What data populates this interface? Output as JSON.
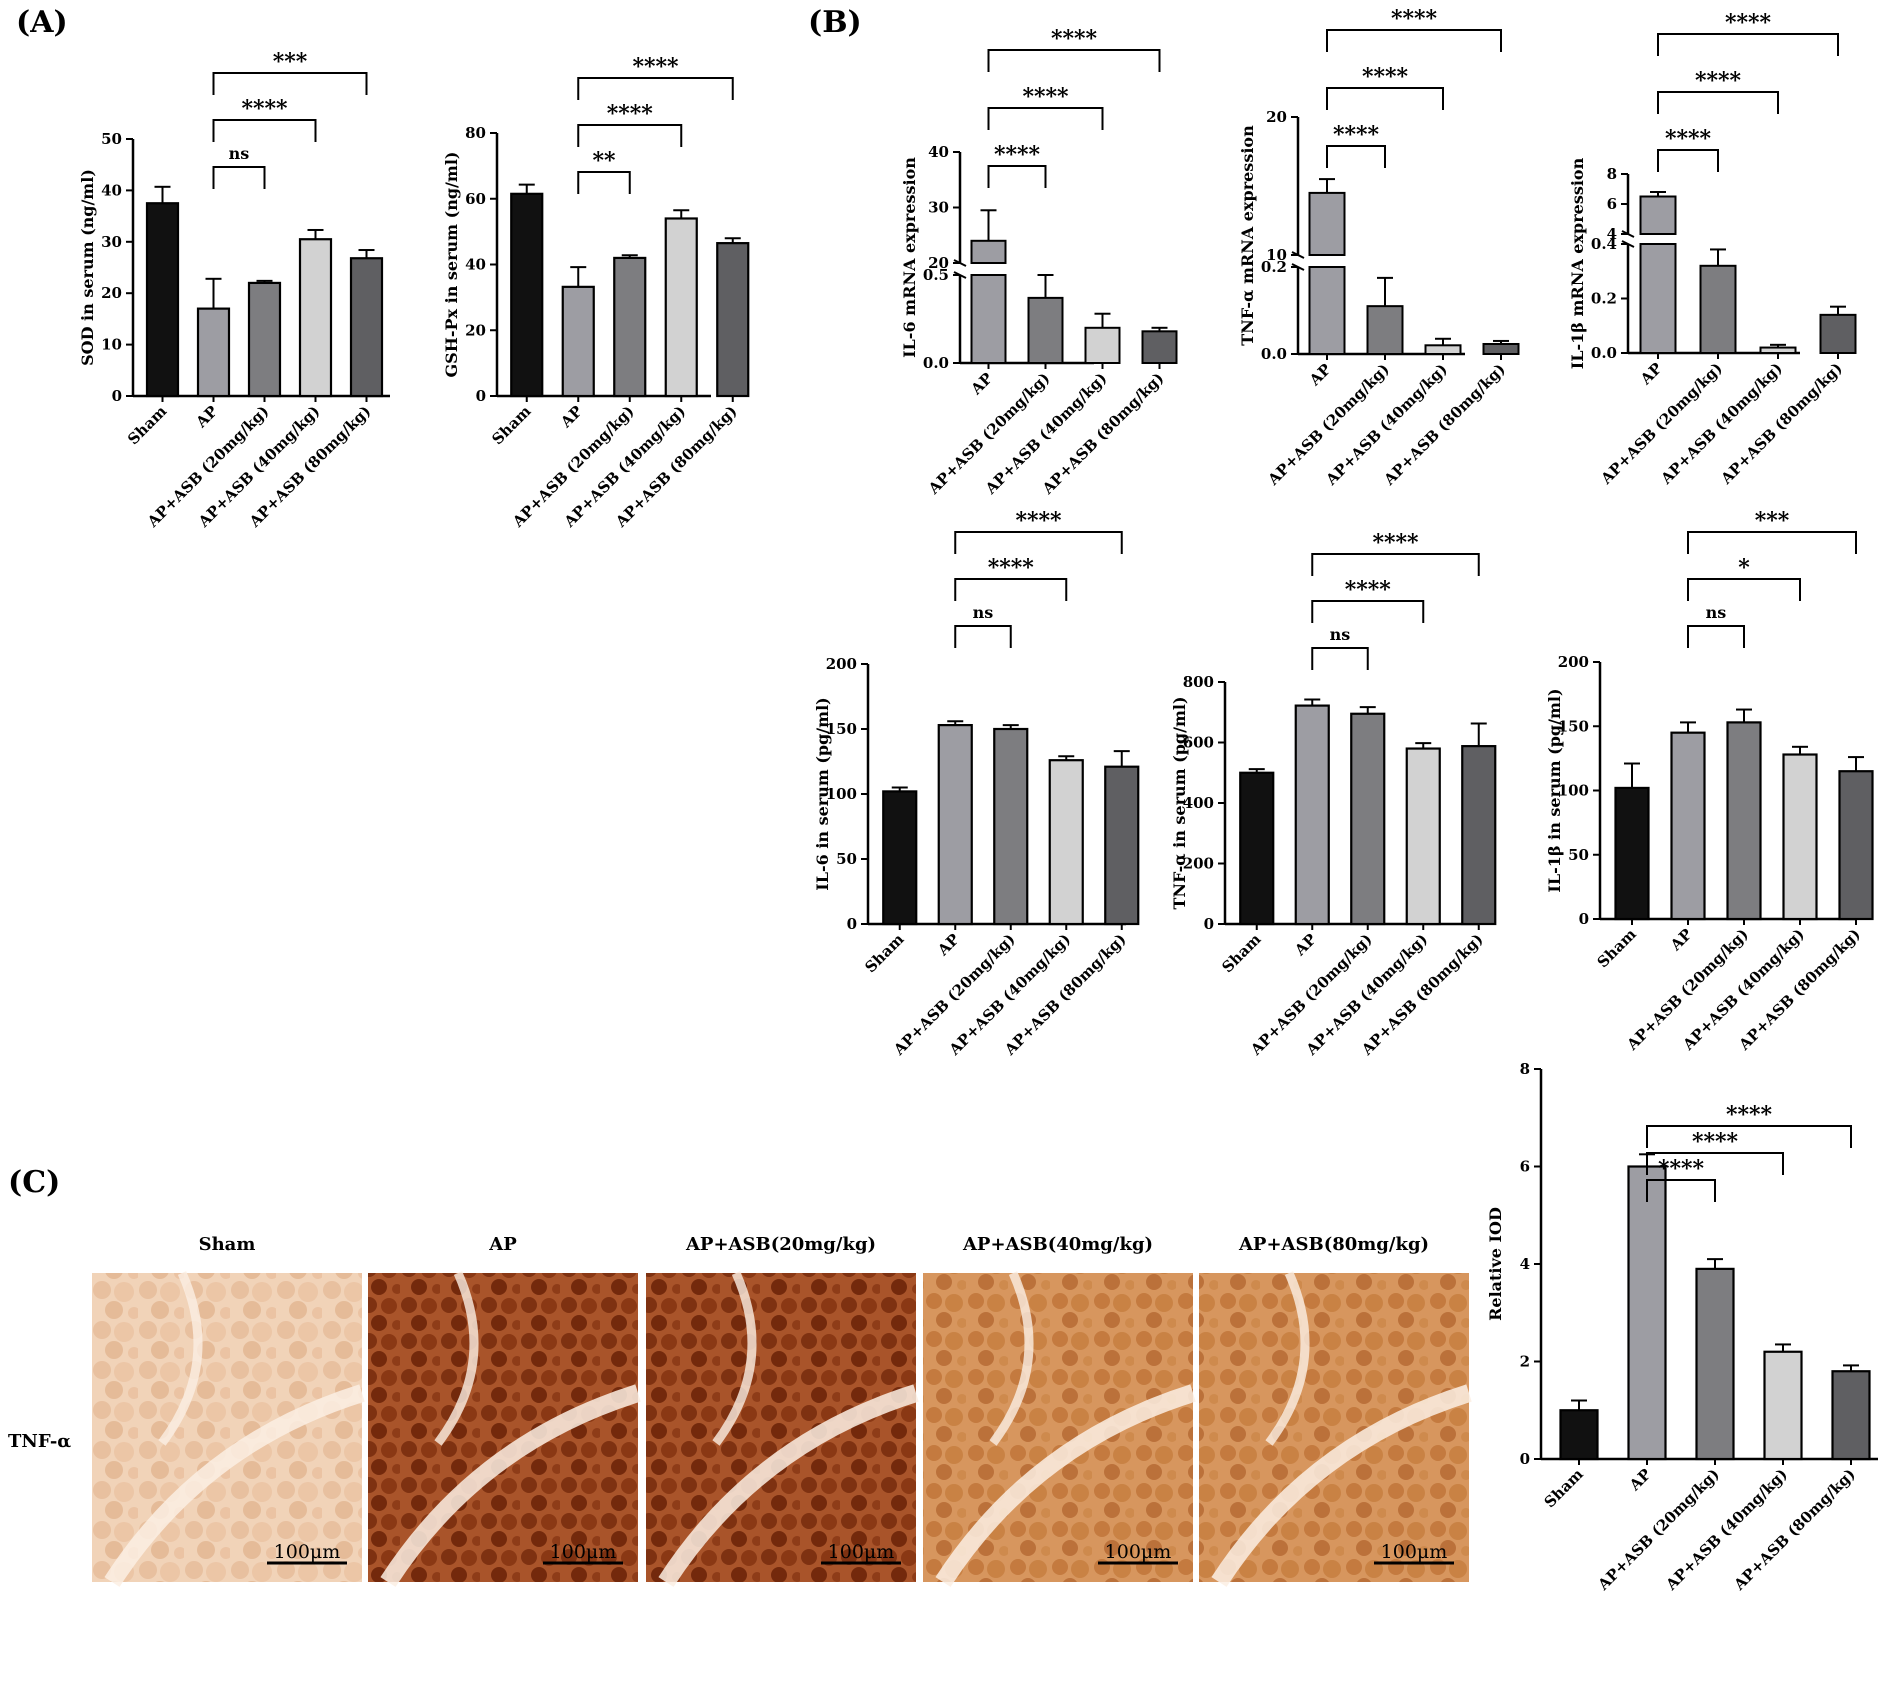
{
  "panel_labels": {
    "A": "(A)",
    "B": "(B)",
    "C": "(C)"
  },
  "colors": {
    "Sham": "#111111",
    "AP": "#9d9da3",
    "AP+ASB (20mg/kg)": "#7d7d80",
    "AP+ASB (40mg/kg)": "#d2d2d2",
    "AP+ASB (80mg/kg)": "#5f5f62"
  },
  "chart_data": [
    {
      "id": "sod",
      "type": "bar",
      "ylabel": "SOD in serum (ng/ml)",
      "ylim": [
        0,
        50
      ],
      "yticks": [
        0,
        10,
        20,
        30,
        40,
        50
      ],
      "categories": [
        "Sham",
        "AP",
        "AP+ASB (20mg/kg)",
        "AP+ASB (40mg/kg)",
        "AP+ASB (80mg/kg)"
      ],
      "values": [
        37.5,
        17,
        22,
        30.5,
        26.8
      ],
      "errors": [
        3.2,
        5.8,
        0.4,
        1.8,
        1.6
      ],
      "comparisons": [
        {
          "from": "AP",
          "to": "AP+ASB (20mg/kg)",
          "label": "ns"
        },
        {
          "from": "AP",
          "to": "AP+ASB (40mg/kg)",
          "label": "****"
        },
        {
          "from": "AP",
          "to": "AP+ASB (80mg/kg)",
          "label": "***"
        }
      ]
    },
    {
      "id": "gshpx",
      "type": "bar",
      "ylabel": "GSH-Px in serum (ng/ml)",
      "ylim": [
        0,
        80
      ],
      "yticks": [
        0,
        20,
        40,
        60,
        80
      ],
      "categories": [
        "Sham",
        "AP",
        "AP+ASB (20mg/kg)",
        "AP+ASB (40mg/kg)",
        "AP+ASB (80mg/kg)"
      ],
      "values": [
        61.5,
        33.2,
        42,
        54,
        46.5
      ],
      "errors": [
        2.8,
        6,
        0.8,
        2.5,
        1.5
      ],
      "comparisons": [
        {
          "from": "AP",
          "to": "AP+ASB (20mg/kg)",
          "label": "**"
        },
        {
          "from": "AP",
          "to": "AP+ASB (40mg/kg)",
          "label": "****"
        },
        {
          "from": "AP",
          "to": "AP+ASB (80mg/kg)",
          "label": "****"
        }
      ]
    },
    {
      "id": "il6mrna",
      "type": "bar",
      "ylabel": "IL-6 mRNA expression",
      "axis_break": true,
      "lower_ylim": [
        0,
        0.5
      ],
      "lower_yticks": [
        0.0,
        0.5
      ],
      "upper_ylim": [
        20,
        40
      ],
      "upper_yticks": [
        20,
        30,
        40
      ],
      "categories": [
        "AP",
        "AP+ASB (20mg/kg)",
        "AP+ASB (40mg/kg)",
        "AP+ASB (80mg/kg)"
      ],
      "values": [
        24,
        0.37,
        0.2,
        0.18
      ],
      "errors": [
        5.5,
        0.17,
        0.08,
        0.02
      ],
      "comparisons": [
        {
          "from": "AP",
          "to": "AP+ASB (20mg/kg)",
          "label": "****"
        },
        {
          "from": "AP",
          "to": "AP+ASB (40mg/kg)",
          "label": "****"
        },
        {
          "from": "AP",
          "to": "AP+ASB (80mg/kg)",
          "label": "****"
        }
      ]
    },
    {
      "id": "tnfmrna",
      "type": "bar",
      "ylabel": "TNF-α mRNA expression",
      "axis_break": true,
      "lower_ylim": [
        0,
        0.2
      ],
      "lower_yticks": [
        0.0,
        0.2
      ],
      "upper_ylim": [
        10,
        20
      ],
      "upper_yticks": [
        10,
        20
      ],
      "categories": [
        "AP",
        "AP+ASB (20mg/kg)",
        "AP+ASB (40mg/kg)",
        "AP+ASB (80mg/kg)"
      ],
      "values": [
        14.5,
        0.11,
        0.02,
        0.023
      ],
      "errors": [
        1,
        0.065,
        0.015,
        0.007
      ],
      "comparisons": [
        {
          "from": "AP",
          "to": "AP+ASB (20mg/kg)",
          "label": "****"
        },
        {
          "from": "AP",
          "to": "AP+ASB (40mg/kg)",
          "label": "****"
        },
        {
          "from": "AP",
          "to": "AP+ASB (80mg/kg)",
          "label": "****"
        }
      ]
    },
    {
      "id": "il1bmrna",
      "type": "bar",
      "ylabel": "IL-1β mRNA expression",
      "axis_break": true,
      "lower_ylim": [
        0,
        0.4
      ],
      "lower_yticks": [
        0.0,
        0.2,
        0.4
      ],
      "upper_ylim": [
        4,
        8
      ],
      "upper_yticks": [
        4,
        6,
        8
      ],
      "categories": [
        "AP",
        "AP+ASB (20mg/kg)",
        "AP+ASB (40mg/kg)",
        "AP+ASB (80mg/kg)"
      ],
      "values": [
        6.5,
        0.32,
        0.02,
        0.14
      ],
      "errors": [
        0.3,
        0.06,
        0.01,
        0.03
      ],
      "comparisons": [
        {
          "from": "AP",
          "to": "AP+ASB (20mg/kg)",
          "label": "****"
        },
        {
          "from": "AP",
          "to": "AP+ASB (40mg/kg)",
          "label": "****"
        },
        {
          "from": "AP",
          "to": "AP+ASB (80mg/kg)",
          "label": "****"
        }
      ]
    },
    {
      "id": "il6serum",
      "type": "bar",
      "ylabel": "IL-6 in serum (pg/ml)",
      "ylim": [
        0,
        200
      ],
      "yticks": [
        0,
        50,
        100,
        150,
        200
      ],
      "categories": [
        "Sham",
        "AP",
        "AP+ASB (20mg/kg)",
        "AP+ASB (40mg/kg)",
        "AP+ASB (80mg/kg)"
      ],
      "values": [
        102,
        153,
        150,
        126,
        121
      ],
      "errors": [
        3,
        3,
        3,
        3,
        12
      ],
      "comparisons": [
        {
          "from": "AP",
          "to": "AP+ASB (20mg/kg)",
          "label": "ns"
        },
        {
          "from": "AP",
          "to": "AP+ASB (40mg/kg)",
          "label": "****"
        },
        {
          "from": "AP",
          "to": "AP+ASB (80mg/kg)",
          "label": "****"
        }
      ]
    },
    {
      "id": "tnfserum",
      "type": "bar",
      "ylabel": "TNF-α in serum (pg/ml)",
      "ylim": [
        0,
        800
      ],
      "yticks": [
        0,
        200,
        400,
        600,
        800
      ],
      "categories": [
        "Sham",
        "AP",
        "AP+ASB (20mg/kg)",
        "AP+ASB (40mg/kg)",
        "AP+ASB (80mg/kg)"
      ],
      "values": [
        500,
        722,
        695,
        580,
        588
      ],
      "errors": [
        12,
        20,
        22,
        18,
        75
      ],
      "comparisons": [
        {
          "from": "AP",
          "to": "AP+ASB (20mg/kg)",
          "label": "ns"
        },
        {
          "from": "AP",
          "to": "AP+ASB (40mg/kg)",
          "label": "****"
        },
        {
          "from": "AP",
          "to": "AP+ASB (80mg/kg)",
          "label": "****"
        }
      ]
    },
    {
      "id": "il1bserum",
      "type": "bar",
      "ylabel": "IL-1β in serum (pg/ml)",
      "ylim": [
        0,
        200
      ],
      "yticks": [
        0,
        50,
        100,
        150,
        200
      ],
      "categories": [
        "Sham",
        "AP",
        "AP+ASB (20mg/kg)",
        "AP+ASB (40mg/kg)",
        "AP+ASB (80mg/kg)"
      ],
      "values": [
        102,
        145,
        153,
        128,
        115
      ],
      "errors": [
        19,
        8,
        10,
        6,
        11
      ],
      "comparisons": [
        {
          "from": "AP",
          "to": "AP+ASB (20mg/kg)",
          "label": "ns"
        },
        {
          "from": "AP",
          "to": "AP+ASB (40mg/kg)",
          "label": "*"
        },
        {
          "from": "AP",
          "to": "AP+ASB (80mg/kg)",
          "label": "***"
        }
      ]
    },
    {
      "id": "iod",
      "type": "bar",
      "ylabel": "Relative IOD",
      "ylim": [
        0,
        8
      ],
      "yticks": [
        0,
        2,
        4,
        6,
        8
      ],
      "categories": [
        "Sham",
        "AP",
        "AP+ASB (20mg/kg)",
        "AP+ASB (40mg/kg)",
        "AP+ASB (80mg/kg)"
      ],
      "values": [
        1.0,
        6.0,
        3.9,
        2.2,
        1.8
      ],
      "errors": [
        0.2,
        0.25,
        0.2,
        0.15,
        0.12
      ],
      "comparisons": [
        {
          "from": "AP",
          "to": "AP+ASB (20mg/kg)",
          "label": "****"
        },
        {
          "from": "AP",
          "to": "AP+ASB (40mg/kg)",
          "label": "****"
        },
        {
          "from": "AP",
          "to": "AP+ASB (80mg/kg)",
          "label": "****"
        }
      ]
    }
  ],
  "histology": {
    "row_label": "TNF-α",
    "scale_bar": "100μm",
    "panels": [
      {
        "title": "Sham",
        "tone": "light"
      },
      {
        "title": "AP",
        "tone": "dark"
      },
      {
        "title": "AP+ASB(20mg/kg)",
        "tone": "dark"
      },
      {
        "title": "AP+ASB(40mg/kg)",
        "tone": "medium"
      },
      {
        "title": "AP+ASB(80mg/kg)",
        "tone": "medium"
      }
    ]
  }
}
